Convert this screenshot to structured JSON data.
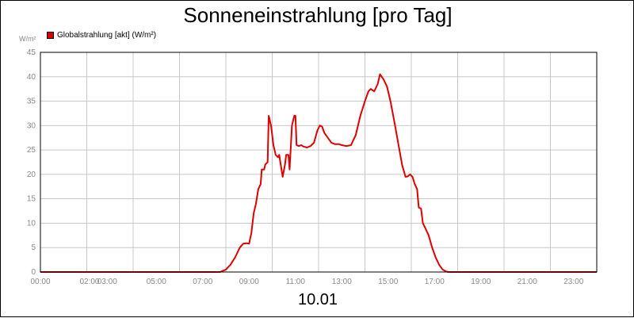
{
  "title": "Sonneneinstrahlung [pro Tag]",
  "unit_label": "W/m²",
  "date_label": "10.01",
  "chart_data": {
    "type": "line",
    "title": "Sonneneinstrahlung [pro Tag]",
    "xlabel": "10.01",
    "ylabel": "W/m²",
    "xlim": [
      0,
      24
    ],
    "ylim": [
      0,
      45
    ],
    "y_ticks": [
      0,
      5,
      10,
      15,
      20,
      25,
      30,
      35,
      40,
      45
    ],
    "x_ticks": [
      {
        "hour": 0,
        "label": "00:00"
      },
      {
        "hour": 2,
        "label": "02:00"
      },
      {
        "hour": 3,
        "label": "03:00"
      },
      {
        "hour": 5,
        "label": "05:00"
      },
      {
        "hour": 7,
        "label": "07:00"
      },
      {
        "hour": 9,
        "label": "09:00"
      },
      {
        "hour": 11,
        "label": "11:00"
      },
      {
        "hour": 13,
        "label": "13:00"
      },
      {
        "hour": 15,
        "label": "15:00"
      },
      {
        "hour": 17,
        "label": "17:00"
      },
      {
        "hour": 19,
        "label": "19:00"
      },
      {
        "hour": 21,
        "label": "21:00"
      },
      {
        "hour": 23,
        "label": "23:00"
      }
    ],
    "grid": true,
    "legend_position": "top-left",
    "series": [
      {
        "name": "Globalstrahlung [akt] (W/m²)",
        "color": "#dd0000",
        "points": [
          [
            0,
            0
          ],
          [
            7.75,
            0
          ],
          [
            8.0,
            0.5
          ],
          [
            8.2,
            1.5
          ],
          [
            8.4,
            3
          ],
          [
            8.6,
            5
          ],
          [
            8.75,
            5.8
          ],
          [
            8.9,
            5.9
          ],
          [
            9.0,
            5.8
          ],
          [
            9.1,
            8
          ],
          [
            9.2,
            12
          ],
          [
            9.3,
            14
          ],
          [
            9.4,
            17
          ],
          [
            9.5,
            18
          ],
          [
            9.55,
            21
          ],
          [
            9.65,
            21
          ],
          [
            9.7,
            22
          ],
          [
            9.8,
            22.5
          ],
          [
            9.85,
            32
          ],
          [
            9.95,
            30
          ],
          [
            10.05,
            26
          ],
          [
            10.15,
            24
          ],
          [
            10.25,
            23.5
          ],
          [
            10.3,
            24
          ],
          [
            10.4,
            21
          ],
          [
            10.45,
            19.5
          ],
          [
            10.55,
            22
          ],
          [
            10.6,
            24
          ],
          [
            10.7,
            24
          ],
          [
            10.75,
            21
          ],
          [
            10.85,
            30
          ],
          [
            10.95,
            32
          ],
          [
            11.0,
            32
          ],
          [
            11.05,
            26
          ],
          [
            11.15,
            25.8
          ],
          [
            11.25,
            26
          ],
          [
            11.35,
            25.7
          ],
          [
            11.5,
            25.5
          ],
          [
            11.65,
            25.8
          ],
          [
            11.8,
            26.5
          ],
          [
            11.95,
            29
          ],
          [
            12.05,
            30
          ],
          [
            12.15,
            29.8
          ],
          [
            12.25,
            28.5
          ],
          [
            12.4,
            27.5
          ],
          [
            12.55,
            26.5
          ],
          [
            12.7,
            26.2
          ],
          [
            12.85,
            26.2
          ],
          [
            13.0,
            26
          ],
          [
            13.2,
            25.8
          ],
          [
            13.4,
            26
          ],
          [
            13.6,
            28
          ],
          [
            13.8,
            32
          ],
          [
            14.0,
            35
          ],
          [
            14.15,
            37
          ],
          [
            14.25,
            37.5
          ],
          [
            14.4,
            37
          ],
          [
            14.55,
            38.5
          ],
          [
            14.65,
            40.5
          ],
          [
            14.8,
            39.5
          ],
          [
            14.95,
            38
          ],
          [
            15.1,
            35
          ],
          [
            15.3,
            30
          ],
          [
            15.45,
            26
          ],
          [
            15.6,
            22
          ],
          [
            15.75,
            19.5
          ],
          [
            15.85,
            19.6
          ],
          [
            15.95,
            20
          ],
          [
            16.05,
            19.5
          ],
          [
            16.15,
            18
          ],
          [
            16.25,
            17
          ],
          [
            16.32,
            13.2
          ],
          [
            16.42,
            13
          ],
          [
            16.5,
            10
          ],
          [
            16.6,
            9
          ],
          [
            16.75,
            7.5
          ],
          [
            16.9,
            5
          ],
          [
            17.05,
            3
          ],
          [
            17.2,
            1.5
          ],
          [
            17.35,
            0.5
          ],
          [
            17.5,
            0.1
          ],
          [
            17.6,
            0
          ],
          [
            24,
            0
          ]
        ]
      }
    ]
  }
}
